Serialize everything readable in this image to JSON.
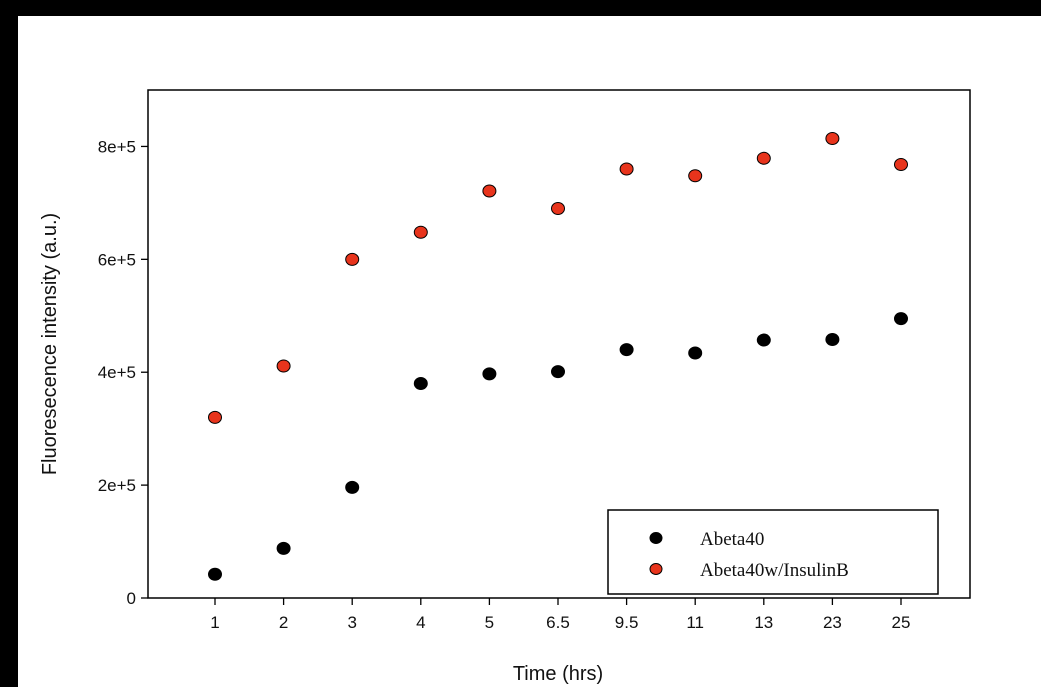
{
  "chart_data": {
    "type": "scatter",
    "title": "",
    "xlabel": "Time (hrs)",
    "ylabel": "Fluoresecence intensity (a.u.)",
    "categories": [
      "1",
      "2",
      "3",
      "4",
      "5",
      "6.5",
      "9.5",
      "11",
      "13",
      "23",
      "25"
    ],
    "ylim": [
      0,
      900000
    ],
    "yticks": [
      {
        "value": 0,
        "label": "0"
      },
      {
        "value": 200000,
        "label": "2e+5"
      },
      {
        "value": 400000,
        "label": "4e+5"
      },
      {
        "value": 600000,
        "label": "6e+5"
      },
      {
        "value": 800000,
        "label": "8e+5"
      }
    ],
    "series": [
      {
        "name": "Abeta40",
        "color": "#000000",
        "values": [
          42000,
          88000,
          196000,
          380000,
          397000,
          401000,
          440000,
          434000,
          457000,
          458000,
          495000
        ]
      },
      {
        "name": "Abeta40w/InsulinB",
        "color": "#e8341c",
        "values": [
          320000,
          411000,
          600000,
          648000,
          721000,
          690000,
          760000,
          748000,
          779000,
          814000,
          768000
        ]
      }
    ],
    "grid": false,
    "legend_position": "bottom-right"
  }
}
